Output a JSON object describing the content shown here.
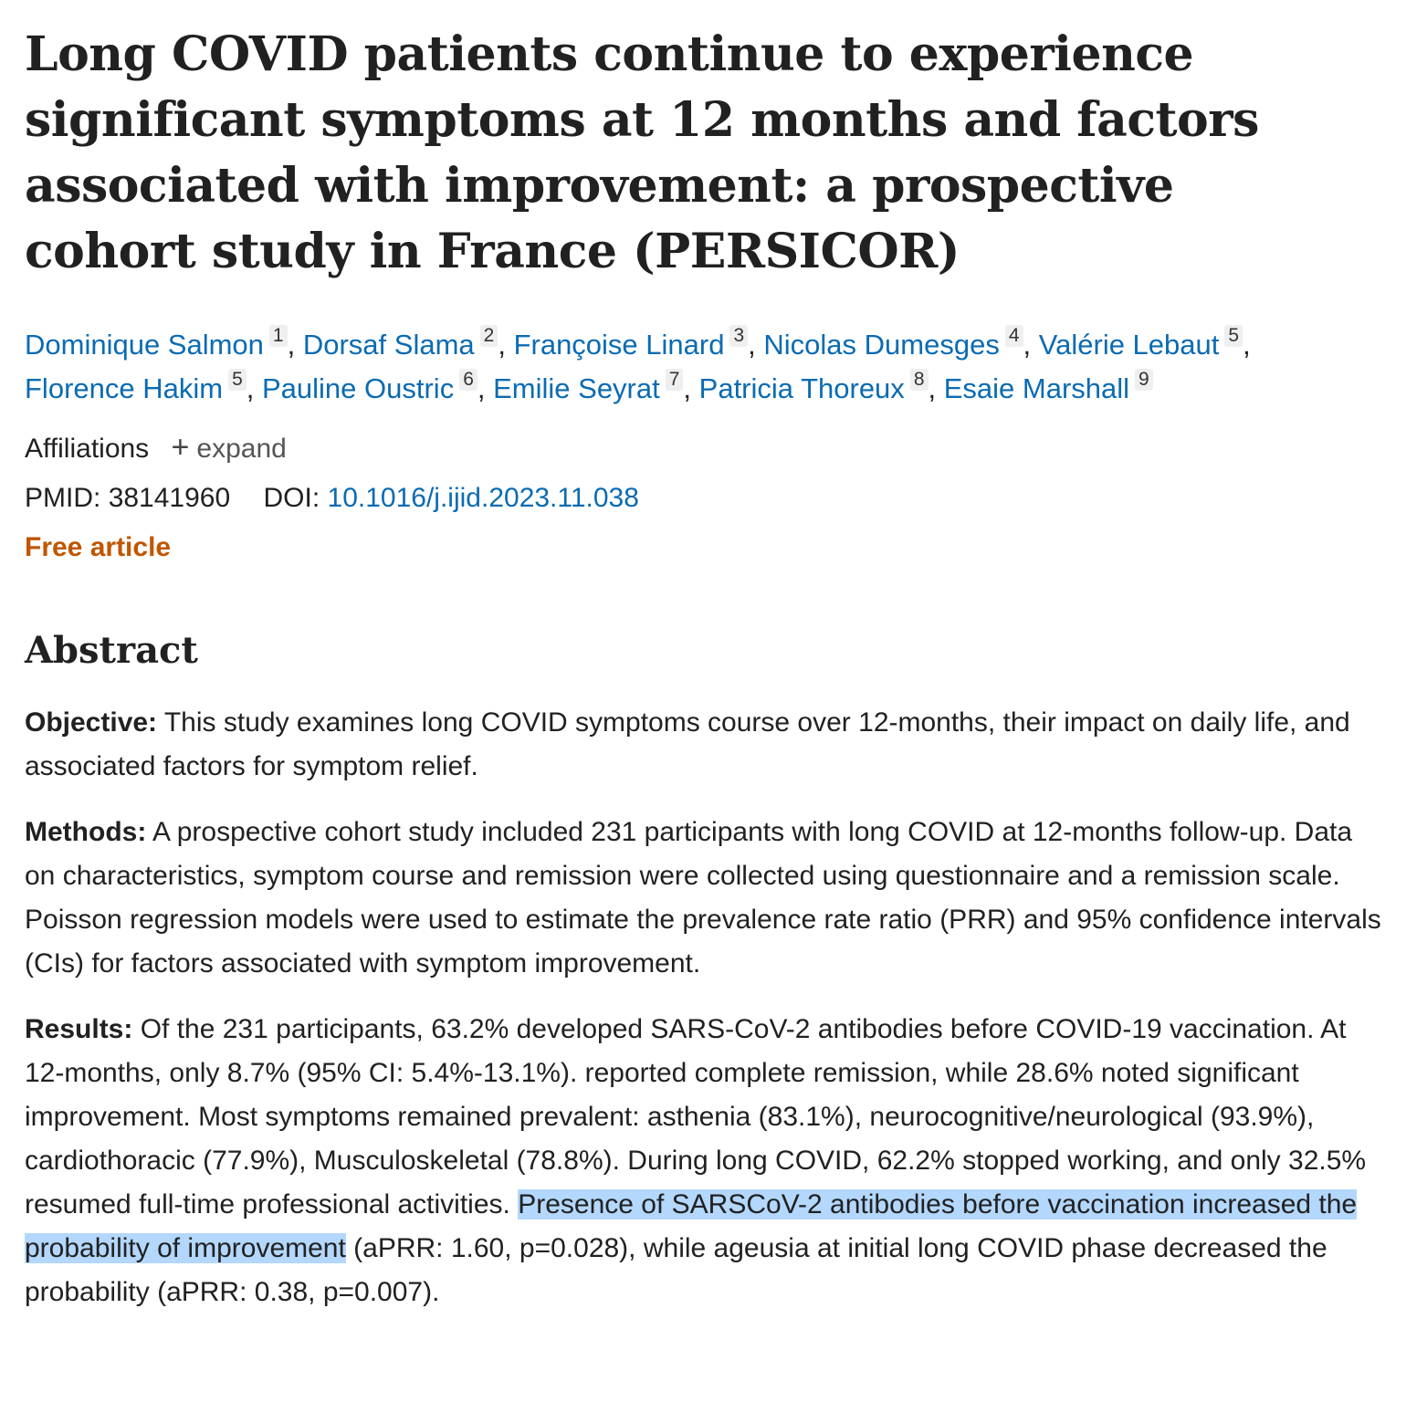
{
  "article": {
    "title": "Long COVID patients continue to experience significant symptoms at 12 months and factors associated with improvement: a prospective cohort study in France (PERSICOR)",
    "authors": [
      {
        "name": "Dominique Salmon",
        "aff": "1",
        "sep": ", "
      },
      {
        "name": "Dorsaf Slama",
        "aff": "2",
        "sep": ", "
      },
      {
        "name": "Françoise Linard",
        "aff": "3",
        "sep": ", "
      },
      {
        "name": "Nicolas Dumesges",
        "aff": "4",
        "sep": ", "
      },
      {
        "name": "Valérie Lebaut",
        "aff": "5",
        "sep": ","
      },
      {
        "name": "Florence Hakim",
        "aff": "5",
        "sep": ", "
      },
      {
        "name": "Pauline Oustric",
        "aff": "6",
        "sep": ", "
      },
      {
        "name": "Emilie Seyrat",
        "aff": "7",
        "sep": ", "
      },
      {
        "name": "Patricia Thoreux",
        "aff": "8",
        "sep": ", "
      },
      {
        "name": "Esaie Marshall",
        "aff": "9",
        "sep": ""
      }
    ],
    "affiliations_label": "Affiliations",
    "expand_label": "expand",
    "pmid_label": "PMID:",
    "pmid": "38141960",
    "doi_label": "DOI:",
    "doi": "10.1016/j.ijid.2023.11.038",
    "free_article": "Free article"
  },
  "abstract": {
    "heading": "Abstract",
    "objective_label": "Objective:",
    "objective_text": "This study examines long COVID symptoms course over 12-months, their impact on daily life, and associated factors for symptom relief.",
    "methods_label": "Methods:",
    "methods_text": "A prospective cohort study included 231 participants with long COVID at 12-months follow-up. Data on characteristics, symptom course and remission were collected using questionnaire and a remission scale. Poisson regression models were used to estimate the prevalence rate ratio (PRR) and 95% confidence intervals (CIs) for factors associated with symptom improvement.",
    "results_label": "Results:",
    "results_text_before": "Of the 231 participants, 63.2% developed SARS-CoV-2 antibodies before COVID-19 vaccination. At 12-months, only 8.7% (95% CI: 5.4%-13.1%). reported complete remission, while 28.6% noted significant improvement. Most symptoms remained prevalent: asthenia (83.1%), neurocognitive/neurological (93.9%), cardiothoracic (77.9%), Musculoskeletal (78.8%). During long COVID, 62.2% stopped working, and only 32.5% resumed full-time professional activities. ",
    "results_text_highlight": "Presence of SARSCoV-2 antibodies before vaccination increased the probability of improvement",
    "results_text_after": " (aPRR: 1.60, p=0.028), while ageusia at initial long COVID phase decreased the probability (aPRR: 0.38, p=0.007)."
  },
  "colors": {
    "link": "#0a6bb3",
    "free_article": "#c05600",
    "selection_highlight": "#b3d7fd",
    "text": "#212121"
  }
}
